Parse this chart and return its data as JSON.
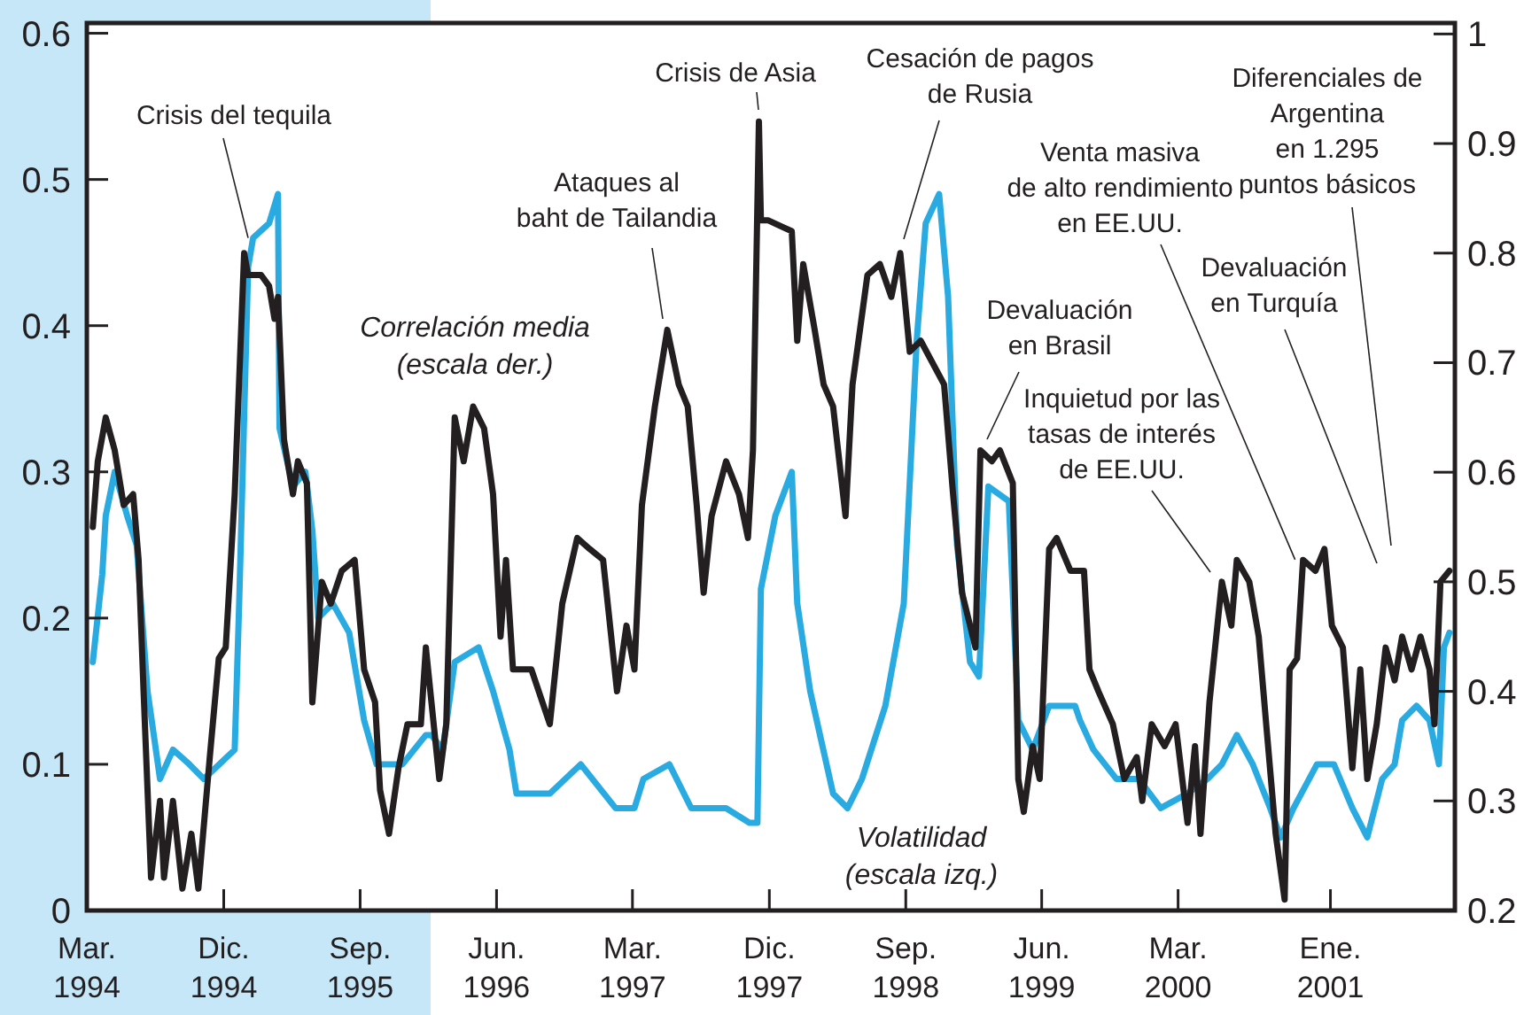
{
  "chart_data": {
    "type": "line",
    "xlim": [
      "1994-03-01",
      "2001-09-08"
    ],
    "xticks": [
      {
        "value": "1994-03-01",
        "label": "Mar. 1994"
      },
      {
        "value": "1994-12-01",
        "label": "Dic. 1994"
      },
      {
        "value": "1995-09-01",
        "label": "Sep. 1995"
      },
      {
        "value": "1996-06-01",
        "label": "Jun. 1996"
      },
      {
        "value": "1997-03-01",
        "label": "Mar. 1997"
      },
      {
        "value": "1997-12-01",
        "label": "Dic. 1997"
      },
      {
        "value": "1998-09-01",
        "label": "Sep. 1998"
      },
      {
        "value": "1999-06-01",
        "label": "Jun. 1999"
      },
      {
        "value": "2000-03-01",
        "label": "Mar. 2000"
      },
      {
        "value": "2001-01-01",
        "label": "Ene. 2001"
      }
    ],
    "ylim": [
      0,
      0.607
    ],
    "yticks": [
      0,
      0.1,
      0.2,
      0.3,
      0.4,
      0.5,
      0.6
    ],
    "y2lim": [
      0.2,
      1.01
    ],
    "y2ticks": [
      0.2,
      0.3,
      0.4,
      0.5,
      0.6,
      0.7,
      0.8,
      0.9,
      1.0
    ],
    "grid": false,
    "legend": false,
    "marker": "none",
    "line_style": "solid",
    "series": [
      {
        "name": "Volatilidad\n(escala izq.)",
        "color": "#29abe2",
        "x": [
          "1994-03-13",
          "1994-04-01",
          "1994-04-08",
          "1994-04-26",
          "1994-05-21",
          "1994-06-09",
          "1994-07-01",
          "1994-07-26",
          "1994-08-21",
          "1994-09-23",
          "1994-10-22",
          "1994-12-23",
          "1995-01-01",
          "1995-01-19",
          "1995-01-29",
          "1995-03-02",
          "1995-03-20",
          "1995-03-23",
          "1995-04-19",
          "1995-05-14",
          "1995-05-28",
          "1995-06-09",
          "1995-07-08",
          "1995-08-10",
          "1995-09-09",
          "1995-10-04",
          "1995-11-25",
          "1996-01-11",
          "1996-01-22",
          "1996-02-14",
          "1996-03-09",
          "1996-04-26",
          "1996-05-25",
          "1996-06-27",
          "1996-07-11",
          "1996-09-16",
          "1996-11-17",
          "1997-01-26",
          "1997-03-05",
          "1997-03-23",
          "1997-05-14",
          "1997-06-27",
          "1997-09-05",
          "1997-10-22",
          "1997-11-07",
          "1997-11-14",
          "1997-12-13",
          "1998-01-15",
          "1998-01-26",
          "1998-02-21",
          "1998-04-08",
          "1998-05-07",
          "1998-06-05",
          "1998-07-22",
          "1998-08-28",
          "1998-09-23",
          "1998-10-11",
          "1998-11-07",
          "1998-11-25",
          "1998-12-13",
          "1999-01-08",
          "1999-01-26",
          "1999-02-14",
          "1999-03-27",
          "1999-04-15",
          "1999-05-14",
          "1999-06-16",
          "1999-08-07",
          "1999-08-17",
          "1999-09-13",
          "1999-10-29",
          "1999-12-13",
          "2000-01-26",
          "2000-03-20",
          "2000-04-29",
          "2000-05-28",
          "2000-06-27",
          "2000-07-29",
          "2000-09-02",
          "2000-09-23",
          "2000-10-19",
          "2000-12-05",
          "2001-01-08",
          "2001-02-14",
          "2001-03-16",
          "2001-04-15",
          "2001-05-10",
          "2001-05-25",
          "2001-06-23",
          "2001-07-19",
          "2001-08-07",
          "2001-08-17",
          "2001-08-28"
        ],
        "values": [
          0.17,
          0.23,
          0.27,
          0.3,
          0.27,
          0.25,
          0.15,
          0.09,
          0.11,
          0.1,
          0.09,
          0.11,
          0.21,
          0.44,
          0.46,
          0.47,
          0.49,
          0.33,
          0.29,
          0.3,
          0.26,
          0.2,
          0.21,
          0.19,
          0.13,
          0.1,
          0.1,
          0.12,
          0.12,
          0.11,
          0.17,
          0.18,
          0.15,
          0.11,
          0.08,
          0.08,
          0.1,
          0.07,
          0.07,
          0.09,
          0.1,
          0.07,
          0.07,
          0.06,
          0.06,
          0.22,
          0.27,
          0.3,
          0.21,
          0.15,
          0.08,
          0.07,
          0.09,
          0.14,
          0.21,
          0.39,
          0.47,
          0.49,
          0.42,
          0.25,
          0.17,
          0.16,
          0.29,
          0.28,
          0.13,
          0.11,
          0.14,
          0.14,
          0.13,
          0.11,
          0.09,
          0.09,
          0.07,
          0.08,
          0.09,
          0.1,
          0.12,
          0.1,
          0.07,
          0.05,
          0.07,
          0.1,
          0.1,
          0.07,
          0.05,
          0.09,
          0.1,
          0.13,
          0.14,
          0.13,
          0.1,
          0.18,
          0.19
        ]
      },
      {
        "name": "Correlación media\n(escala der.)",
        "color": "#231f20",
        "axis": "y2",
        "x": [
          "1994-03-13",
          "1994-03-23",
          "1994-04-08",
          "1994-04-26",
          "1994-05-14",
          "1994-06-02",
          "1994-06-13",
          "1994-06-23",
          "1994-07-08",
          "1994-07-26",
          "1994-08-03",
          "1994-08-21",
          "1994-09-09",
          "1994-09-27",
          "1994-10-11",
          "1994-11-03",
          "1994-11-21",
          "1994-12-05",
          "1994-12-23",
          "1995-01-11",
          "1995-01-19",
          "1995-02-14",
          "1995-03-02",
          "1995-03-13",
          "1995-03-20",
          "1995-04-01",
          "1995-04-19",
          "1995-04-29",
          "1995-05-17",
          "1995-05-28",
          "1995-06-16",
          "1995-07-04",
          "1995-07-26",
          "1995-08-21",
          "1995-09-09",
          "1995-10-01",
          "1995-10-11",
          "1995-10-29",
          "1995-11-17",
          "1995-12-05",
          "1996-01-01",
          "1996-01-11",
          "1996-02-07",
          "1996-02-21",
          "1996-03-09",
          "1996-03-27",
          "1996-04-15",
          "1996-05-07",
          "1996-05-25",
          "1996-06-09",
          "1996-06-20",
          "1996-07-04",
          "1996-08-10",
          "1996-09-16",
          "1996-10-11",
          "1996-11-10",
          "1996-12-05",
          "1997-01-01",
          "1997-01-29",
          "1997-02-17",
          "1997-03-05",
          "1997-03-20",
          "1997-04-15",
          "1997-05-10",
          "1997-06-02",
          "1997-06-20",
          "1997-07-08",
          "1997-07-22",
          "1997-08-07",
          "1997-09-05",
          "1997-10-01",
          "1997-10-19",
          "1997-10-29",
          "1997-11-10",
          "1997-11-14",
          "1997-11-28",
          "1998-01-15",
          "1998-01-26",
          "1998-02-07",
          "1998-03-02",
          "1998-03-20",
          "1998-04-08",
          "1998-05-03",
          "1998-05-17",
          "1998-06-16",
          "1998-07-11",
          "1998-08-03",
          "1998-08-21",
          "1998-09-09",
          "1998-10-01",
          "1998-11-17",
          "1998-12-05",
          "1998-12-23",
          "1999-01-19",
          "1999-01-29",
          "1999-02-21",
          "1999-03-09",
          "1999-04-04",
          "1999-04-15",
          "1999-04-26",
          "1999-05-14",
          "1999-05-28",
          "1999-06-16",
          "1999-07-01",
          "1999-07-29",
          "1999-08-25",
          "1999-09-05",
          "1999-09-23",
          "1999-10-22",
          "1999-11-14",
          "1999-12-09",
          "1999-12-20",
          "2000-01-08",
          "2000-02-03",
          "2000-02-25",
          "2000-03-20",
          "2000-04-04",
          "2000-04-15",
          "2000-05-03",
          "2000-05-28",
          "2000-06-16",
          "2000-06-27",
          "2000-07-22",
          "2000-08-10",
          "2000-08-25",
          "2000-09-13",
          "2000-10-01",
          "2000-10-11",
          "2000-10-26",
          "2000-11-07",
          "2000-12-02",
          "2000-12-20",
          "2001-01-04",
          "2001-01-26",
          "2001-02-14",
          "2001-03-02",
          "2001-03-16",
          "2001-04-04",
          "2001-04-22",
          "2001-05-10",
          "2001-05-25",
          "2001-06-13",
          "2001-07-01",
          "2001-07-19",
          "2001-07-29",
          "2001-08-10",
          "2001-08-28"
        ],
        "values": [
          0.55,
          0.61,
          0.65,
          0.62,
          0.57,
          0.58,
          0.52,
          0.4,
          0.23,
          0.3,
          0.23,
          0.3,
          0.22,
          0.27,
          0.22,
          0.34,
          0.43,
          0.44,
          0.58,
          0.8,
          0.78,
          0.78,
          0.77,
          0.74,
          0.76,
          0.63,
          0.58,
          0.61,
          0.59,
          0.39,
          0.5,
          0.48,
          0.51,
          0.52,
          0.42,
          0.39,
          0.31,
          0.27,
          0.33,
          0.37,
          0.37,
          0.44,
          0.32,
          0.37,
          0.65,
          0.61,
          0.66,
          0.64,
          0.58,
          0.45,
          0.52,
          0.42,
          0.42,
          0.37,
          0.48,
          0.54,
          0.53,
          0.52,
          0.4,
          0.46,
          0.42,
          0.57,
          0.66,
          0.73,
          0.68,
          0.66,
          0.57,
          0.49,
          0.56,
          0.61,
          0.58,
          0.54,
          0.62,
          0.92,
          0.83,
          0.83,
          0.82,
          0.72,
          0.79,
          0.73,
          0.68,
          0.66,
          0.56,
          0.68,
          0.78,
          0.79,
          0.76,
          0.8,
          0.71,
          0.72,
          0.68,
          0.58,
          0.49,
          0.44,
          0.62,
          0.61,
          0.62,
          0.59,
          0.32,
          0.29,
          0.35,
          0.32,
          0.53,
          0.54,
          0.51,
          0.51,
          0.42,
          0.4,
          0.37,
          0.32,
          0.34,
          0.3,
          0.37,
          0.35,
          0.37,
          0.28,
          0.35,
          0.27,
          0.39,
          0.5,
          0.46,
          0.52,
          0.5,
          0.45,
          0.37,
          0.27,
          0.21,
          0.42,
          0.43,
          0.52,
          0.51,
          0.53,
          0.46,
          0.44,
          0.33,
          0.42,
          0.32,
          0.37,
          0.44,
          0.41,
          0.45,
          0.42,
          0.45,
          0.42,
          0.37,
          0.5,
          0.51
        ]
      }
    ],
    "annotations": [
      {
        "text": "Crisis del tequila",
        "x": "1995-01-19",
        "y": 0.46
      },
      "Ataques al\nbaht de Tailandia",
      "Crisis de Asia",
      "Cesación de pagos\nde Rusia",
      "Devaluación\nen Brasil",
      "Inquietud por las\ntasas de interés\nde EE.UU.",
      {
        "text": "Venta masiva\nde alto rendimiento\nen EE.UU.",
        "x": "2000-10-22",
        "y": 0.24
      },
      "Devaluación\nen Turquía",
      "Diferenciales de\nArgentina\nen 1.295\npuntos básicos"
    ]
  }
}
